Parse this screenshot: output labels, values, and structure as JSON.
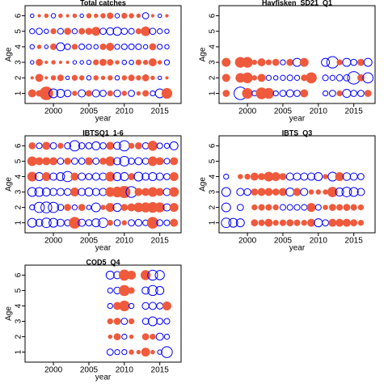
{
  "chart_data": [
    {
      "type": "bubble",
      "title": "Total catches",
      "x_label": "year",
      "y_label": "Age",
      "x": [
        1997,
        1998,
        1999,
        2000,
        2001,
        2002,
        2003,
        2004,
        2005,
        2006,
        2007,
        2008,
        2009,
        2010,
        2011,
        2012,
        2013,
        2014,
        2015,
        2016,
        2017
      ],
      "ages": [
        1,
        2,
        3,
        4,
        5,
        6
      ],
      "values": [
        [
          0.8,
          0.5,
          2.5,
          -1.2,
          -1.0,
          -0.7,
          0.3,
          -0.8,
          0.5,
          -0.8,
          -0.6,
          0.4,
          -0.7,
          0.3,
          -0.6,
          0.2,
          0.5,
          -0.4,
          -1.2,
          1.5,
          null
        ],
        [
          0.1,
          0.8,
          0.1,
          0.3,
          0.5,
          -0.2,
          0.4,
          0.3,
          -0.3,
          0.3,
          0.2,
          0.3,
          -0.3,
          0.3,
          0.5,
          0.3,
          0.6,
          0.2,
          -0.2,
          0.1,
          null
        ],
        [
          -0.2,
          0.6,
          0.1,
          0.2,
          0.1,
          0.1,
          -0.2,
          -0.2,
          -0.3,
          0.4,
          0.6,
          0.5,
          0.2,
          -0.3,
          -0.3,
          0.4,
          0.3,
          0.8,
          0.2,
          -0.4,
          null
        ],
        [
          -0.3,
          0.2,
          -0.2,
          0.5,
          -1.0,
          -0.5,
          0.4,
          -0.5,
          -0.4,
          -0.3,
          0.5,
          0.8,
          -0.4,
          -0.5,
          -0.5,
          -0.5,
          -0.3,
          0.6,
          -0.4,
          -0.3,
          null
        ],
        [
          -0.4,
          -0.6,
          -0.3,
          0.4,
          -0.5,
          0.6,
          -0.4,
          0.5,
          0.6,
          1.0,
          -0.6,
          -0.8,
          -1.0,
          -0.6,
          -0.5,
          0.4,
          1.2,
          -0.6,
          -0.4,
          -0.3,
          null
        ],
        [
          -0.2,
          0.1,
          0.2,
          -0.3,
          0.2,
          0.1,
          0.2,
          -0.2,
          0.3,
          0.2,
          0.3,
          0.5,
          -0.3,
          0.4,
          0.3,
          0.2,
          -0.6,
          0.1,
          -0.2,
          0.1,
          null
        ]
      ],
      "xlim": [
        1996,
        2018
      ],
      "xticks": [
        2000,
        2005,
        2010,
        2015
      ],
      "ylim": [
        0.35,
        6.65
      ],
      "yticks": [
        1,
        2,
        3,
        4,
        5,
        6
      ],
      "positive_color": "#ef5a3c",
      "negative_color": "#0000ff"
    },
    {
      "type": "bubble",
      "title": "Havfisken_SD21_Q1",
      "x_label": "year",
      "y_label": "Age",
      "x": [
        1997,
        1998,
        1999,
        2000,
        2001,
        2002,
        2003,
        2004,
        2005,
        2006,
        2007,
        2008,
        2009,
        2010,
        2011,
        2012,
        2013,
        2014,
        2015,
        2016,
        2017
      ],
      "ages": [
        1,
        2,
        3
      ],
      "values": [
        [
          0.6,
          null,
          -2.4,
          1.5,
          -0.4,
          1.8,
          1.5,
          -0.4,
          -0.6,
          -0.8,
          -0.6,
          0.8,
          null,
          null,
          -0.4,
          -0.6,
          0.4,
          -1.0,
          -0.6,
          -0.6,
          0.6
        ],
        [
          0.8,
          null,
          1.2,
          1.5,
          0.3,
          0.8,
          -0.4,
          -0.3,
          -0.4,
          -0.5,
          -0.4,
          0.5,
          1.6,
          null,
          -0.5,
          -0.4,
          -0.6,
          -0.6,
          -2.4,
          0.6,
          -1.6
        ],
        [
          1.0,
          null,
          1.5,
          1.5,
          0.3,
          0.8,
          0.4,
          0.6,
          -0.4,
          0.6,
          -1.0,
          1.0,
          null,
          null,
          -1.0,
          -2.0,
          0.4,
          -1.0,
          -0.6,
          0.6,
          -1.0
        ]
      ],
      "xlim": [
        1996,
        2018
      ],
      "xticks": [
        2000,
        2005,
        2010,
        2015
      ],
      "ylim": [
        0.35,
        6.65
      ],
      "yticks": [
        1,
        2,
        3,
        4,
        5,
        6
      ],
      "positive_color": "#ef5a3c",
      "negative_color": "#0000ff"
    },
    {
      "type": "bubble",
      "title": "IBTSQ1_1-6",
      "x_label": "year",
      "y_label": "Age",
      "x": [
        1997,
        1998,
        1999,
        2000,
        2001,
        2002,
        2003,
        2004,
        2005,
        2006,
        2007,
        2008,
        2009,
        2010,
        2011,
        2012,
        2013,
        2014,
        2015,
        2016,
        2017
      ],
      "ages": [
        1,
        2,
        3,
        4,
        5,
        6
      ],
      "values": [
        [
          -1.2,
          -0.8,
          -1.4,
          -1.2,
          -0.8,
          -0.6,
          1.8,
          -0.8,
          -0.6,
          -1.0,
          -1.4,
          0.4,
          -0.6,
          0.3,
          -0.6,
          -0.7,
          -0.5,
          1.8,
          -0.6,
          -0.5,
          0.8
        ],
        [
          -0.4,
          -1.6,
          -1.8,
          -1.6,
          -0.6,
          0.6,
          -0.4,
          0.6,
          -0.3,
          -1.2,
          0.3,
          1.0,
          -1.0,
          0.6,
          0.8,
          1.2,
          1.3,
          1.5,
          1.3,
          -0.8,
          1.0
        ],
        [
          -1.2,
          -1.2,
          -1.0,
          -0.8,
          -0.8,
          -0.7,
          1.0,
          -0.8,
          -1.0,
          -0.8,
          -0.8,
          1.2,
          1.5,
          2.0,
          -1.8,
          0.8,
          0.8,
          1.2,
          0.8,
          -0.8,
          1.2
        ],
        [
          1.2,
          -1.0,
          1.0,
          -0.8,
          -1.0,
          -1.6,
          0.8,
          -0.8,
          -0.6,
          -0.8,
          -0.8,
          1.2,
          -1.0,
          -1.0,
          0.6,
          -1.2,
          -0.8,
          -1.0,
          -0.8,
          -0.6,
          1.0
        ],
        [
          1.2,
          0.8,
          0.8,
          0.8,
          -0.6,
          0.6,
          -0.6,
          -0.6,
          0.8,
          -0.6,
          0.6,
          1.2,
          -0.8,
          -1.4,
          -0.6,
          -0.8,
          -0.6,
          1.2,
          0.8,
          -0.5,
          0.8
        ],
        [
          0.6,
          -0.5,
          0.8,
          -0.6,
          0.4,
          -0.6,
          -1.6,
          -0.6,
          -0.6,
          -1.0,
          -0.6,
          0.8,
          -0.8,
          -1.6,
          0.4,
          0.6,
          -0.6,
          1.3,
          -0.5,
          -0.4,
          -1.0
        ]
      ],
      "xlim": [
        1996,
        2018
      ],
      "xticks": [
        2000,
        2005,
        2010,
        2015
      ],
      "ylim": [
        0.35,
        6.65
      ],
      "yticks": [
        1,
        2,
        3,
        4,
        5,
        6
      ],
      "positive_color": "#ef5a3c",
      "negative_color": "#0000ff"
    },
    {
      "type": "bubble",
      "title": "IBTS_Q3",
      "x_label": "year",
      "y_label": "Age",
      "x": [
        1997,
        1998,
        1999,
        2000,
        2001,
        2002,
        2003,
        2004,
        2005,
        2006,
        2007,
        2008,
        2009,
        2010,
        2011,
        2012,
        2013,
        2014,
        2015,
        2016,
        2017
      ],
      "ages": [
        1,
        2,
        3,
        4
      ],
      "values": [
        [
          -1.4,
          -1.2,
          -1.0,
          null,
          0.6,
          0.5,
          0.8,
          0.4,
          0.5,
          0.6,
          0.5,
          0.4,
          0.8,
          -1.0,
          -0.6,
          0.8,
          0.8,
          0.8,
          0.6,
          0.4,
          null
        ],
        [
          -1.2,
          null,
          -0.6,
          null,
          0.4,
          0.5,
          0.5,
          0.4,
          -0.5,
          -0.5,
          -0.5,
          -0.5,
          1.0,
          -0.5,
          0.3,
          0.6,
          0.5,
          0.6,
          0.5,
          0.4,
          null
        ],
        [
          -1.2,
          null,
          -0.8,
          -0.7,
          0.6,
          0.8,
          0.8,
          0.6,
          0.8,
          -1.0,
          0.8,
          -0.8,
          0.3,
          0.3,
          0.3,
          1.4,
          -1.0,
          -1.4,
          -1.2,
          -0.8,
          null
        ],
        [
          -0.4,
          null,
          0.3,
          0.4,
          0.8,
          0.6,
          1.2,
          1.0,
          0.6,
          -0.8,
          -0.8,
          -0.8,
          -0.8,
          -1.0,
          0.3,
          -1.2,
          1.0,
          -0.9,
          -0.8,
          -0.6,
          null
        ]
      ],
      "xlim": [
        1996,
        2018
      ],
      "xticks": [
        2000,
        2005,
        2010,
        2015
      ],
      "ylim": [
        0.35,
        6.65
      ],
      "yticks": [
        1,
        2,
        3,
        4,
        5,
        6
      ],
      "positive_color": "#ef5a3c",
      "negative_color": "#0000ff"
    },
    {
      "type": "bubble",
      "title": "COD5_Q4",
      "x_label": "year",
      "y_label": "Age",
      "x": [
        2008,
        2009,
        2010,
        2011,
        2012,
        2013,
        2014,
        2015,
        2016
      ],
      "ages": [
        1,
        2,
        3,
        4,
        5,
        6
      ],
      "values": [
        [
          -0.6,
          -0.4,
          -0.4,
          0.3,
          0.2,
          1.0,
          0.2,
          -0.3,
          -1.8
        ],
        [
          0.2,
          0.6,
          -0.4,
          0.2,
          null,
          0.6,
          0.4,
          -0.8,
          -0.4
        ],
        [
          0.4,
          0.6,
          -0.6,
          0.4,
          null,
          -0.6,
          -1.2,
          -0.6,
          -0.5
        ],
        [
          -0.4,
          0.8,
          1.5,
          -0.4,
          null,
          -0.7,
          -0.8,
          -0.6,
          1.0
        ],
        [
          -0.4,
          -0.7,
          1.6,
          0.5,
          null,
          -0.8,
          -1.5,
          -1.0,
          null
        ],
        [
          -1.0,
          -0.8,
          1.6,
          1.0,
          null,
          1.3,
          -1.5,
          -1.3,
          null
        ]
      ],
      "xlim": [
        1996,
        2018
      ],
      "xticks": [
        2000,
        2005,
        2010,
        2015
      ],
      "ylim": [
        0.35,
        6.65
      ],
      "yticks": [
        1,
        2,
        3,
        4,
        5,
        6
      ],
      "positive_color": "#ef5a3c",
      "negative_color": "#0000ff"
    }
  ]
}
